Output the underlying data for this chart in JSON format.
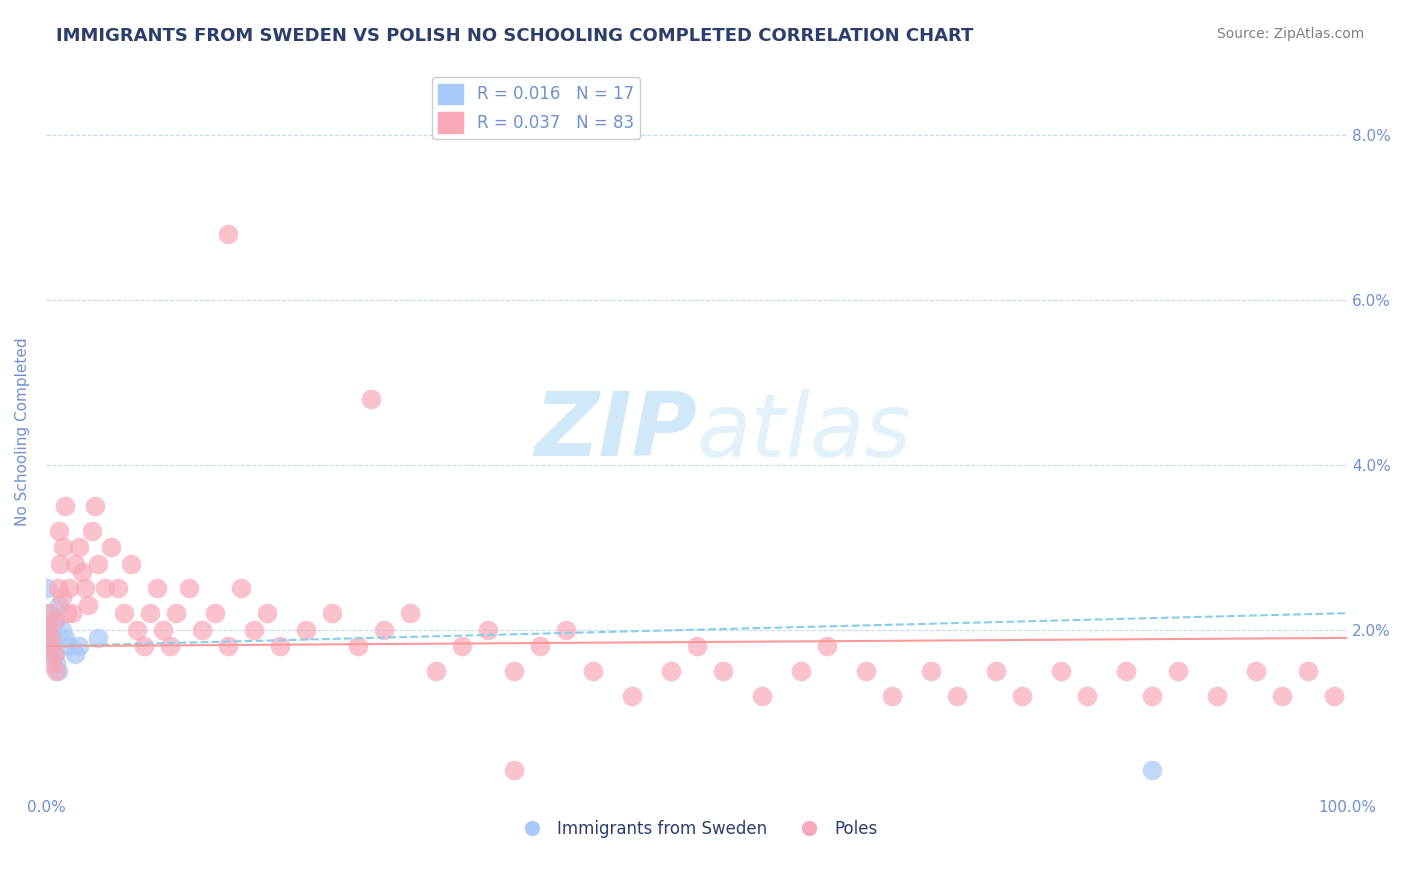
{
  "title": "IMMIGRANTS FROM SWEDEN VS POLISH NO SCHOOLING COMPLETED CORRELATION CHART",
  "source": "Source: ZipAtlas.com",
  "ylabel": "No Schooling Completed",
  "watermark_zip": "ZIP",
  "watermark_atlas": "atlas",
  "xlim": [
    0,
    1.0
  ],
  "ylim": [
    0,
    0.088
  ],
  "xtick_vals": [
    0.0,
    0.2,
    0.4,
    0.6,
    0.8,
    1.0
  ],
  "xtick_labels": [
    "0.0%",
    "",
    "",
    "",
    "",
    "100.0%"
  ],
  "ytick_vals": [
    0.0,
    0.02,
    0.04,
    0.06,
    0.08
  ],
  "ytick_labels": [
    "",
    "2.0%",
    "4.0%",
    "6.0%",
    "8.0%"
  ],
  "legend_r_sweden": "0.016",
  "legend_n_sweden": "17",
  "legend_r_poles": "0.037",
  "legend_n_poles": "83",
  "legend_label_sweden": "Immigrants from Sweden",
  "legend_label_poles": "Poles",
  "sweden_color": "#a8c8f8",
  "poles_color": "#f8a8b8",
  "sweden_line_color": "#87CEEB",
  "poles_line_color": "#FF9999",
  "title_color": "#2c3e6b",
  "axis_color": "#7090d0",
  "grid_color": "#c8d8f0",
  "watermark_color": "#d0e8f8",
  "sweden_x": [
    0.001,
    0.002,
    0.003,
    0.004,
    0.005,
    0.006,
    0.007,
    0.008,
    0.009,
    0.01,
    0.012,
    0.015,
    0.018,
    0.022,
    0.025,
    0.04,
    0.85
  ],
  "sweden_y": [
    0.025,
    0.022,
    0.019,
    0.02,
    0.018,
    0.017,
    0.021,
    0.016,
    0.015,
    0.023,
    0.02,
    0.019,
    0.018,
    0.017,
    0.018,
    0.019,
    0.003
  ],
  "poles_x": [
    0.001,
    0.002,
    0.003,
    0.004,
    0.005,
    0.006,
    0.007,
    0.008,
    0.009,
    0.01,
    0.011,
    0.012,
    0.013,
    0.015,
    0.016,
    0.018,
    0.02,
    0.022,
    0.025,
    0.028,
    0.03,
    0.032,
    0.035,
    0.038,
    0.04,
    0.045,
    0.05,
    0.055,
    0.06,
    0.065,
    0.07,
    0.075,
    0.08,
    0.085,
    0.09,
    0.095,
    0.1,
    0.11,
    0.12,
    0.13,
    0.14,
    0.15,
    0.16,
    0.17,
    0.18,
    0.2,
    0.22,
    0.24,
    0.26,
    0.28,
    0.3,
    0.32,
    0.34,
    0.36,
    0.38,
    0.4,
    0.42,
    0.45,
    0.48,
    0.5,
    0.52,
    0.55,
    0.58,
    0.6,
    0.63,
    0.65,
    0.68,
    0.7,
    0.73,
    0.75,
    0.78,
    0.8,
    0.83,
    0.85,
    0.87,
    0.9,
    0.93,
    0.95,
    0.97,
    0.99,
    0.14,
    0.25,
    0.36
  ],
  "poles_y": [
    0.02,
    0.018,
    0.022,
    0.019,
    0.016,
    0.021,
    0.017,
    0.015,
    0.025,
    0.032,
    0.028,
    0.024,
    0.03,
    0.035,
    0.022,
    0.025,
    0.022,
    0.028,
    0.03,
    0.027,
    0.025,
    0.023,
    0.032,
    0.035,
    0.028,
    0.025,
    0.03,
    0.025,
    0.022,
    0.028,
    0.02,
    0.018,
    0.022,
    0.025,
    0.02,
    0.018,
    0.022,
    0.025,
    0.02,
    0.022,
    0.018,
    0.025,
    0.02,
    0.022,
    0.018,
    0.02,
    0.022,
    0.018,
    0.02,
    0.022,
    0.015,
    0.018,
    0.02,
    0.015,
    0.018,
    0.02,
    0.015,
    0.012,
    0.015,
    0.018,
    0.015,
    0.012,
    0.015,
    0.018,
    0.015,
    0.012,
    0.015,
    0.012,
    0.015,
    0.012,
    0.015,
    0.012,
    0.015,
    0.012,
    0.015,
    0.012,
    0.015,
    0.012,
    0.015,
    0.012,
    0.068,
    0.048,
    0.003
  ],
  "sweden_trend": [
    0.018,
    0.022
  ],
  "poles_trend": [
    0.018,
    0.019
  ]
}
